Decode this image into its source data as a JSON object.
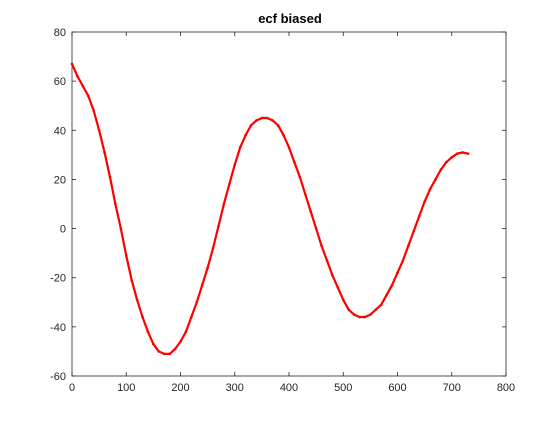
{
  "chart_data": {
    "type": "line",
    "title": "ecf biased",
    "xlabel": "",
    "ylabel": "",
    "xlim": [
      0,
      800
    ],
    "ylim": [
      -60,
      80
    ],
    "xticks": [
      0,
      100,
      200,
      300,
      400,
      500,
      600,
      700,
      800
    ],
    "yticks": [
      -60,
      -40,
      -20,
      0,
      20,
      40,
      60,
      80
    ],
    "grid": false,
    "legend": "none",
    "series": [
      {
        "color": "#ff0000",
        "marker": "dot",
        "x": [
          0,
          10,
          20,
          30,
          40,
          50,
          60,
          70,
          80,
          90,
          100,
          110,
          120,
          130,
          140,
          150,
          160,
          170,
          180,
          190,
          200,
          210,
          220,
          230,
          240,
          250,
          260,
          270,
          280,
          290,
          300,
          310,
          320,
          330,
          340,
          350,
          360,
          370,
          380,
          390,
          400,
          410,
          420,
          430,
          440,
          450,
          460,
          470,
          480,
          490,
          500,
          510,
          520,
          530,
          540,
          550,
          560,
          570,
          580,
          590,
          600,
          610,
          620,
          630,
          640,
          650,
          660,
          670,
          680,
          690,
          700,
          710,
          720,
          730
        ],
        "values": [
          67,
          62,
          58,
          54,
          48,
          40,
          31,
          21,
          10,
          0,
          -11,
          -21,
          -29,
          -36,
          -42,
          -47,
          -50,
          -51,
          -51,
          -49,
          -46,
          -42,
          -36,
          -30,
          -23,
          -16,
          -8,
          1,
          10,
          18,
          26,
          33,
          38,
          42,
          44,
          45,
          45,
          44,
          42,
          38,
          33,
          27,
          21,
          14,
          7,
          0,
          -7,
          -13,
          -19,
          -24,
          -29,
          -33,
          -35,
          -36,
          -36,
          -35,
          -33,
          -31,
          -27,
          -23,
          -18,
          -13,
          -7,
          -1,
          5,
          11,
          16,
          20,
          24,
          27,
          29,
          30.5,
          31,
          30.5
        ]
      }
    ]
  }
}
